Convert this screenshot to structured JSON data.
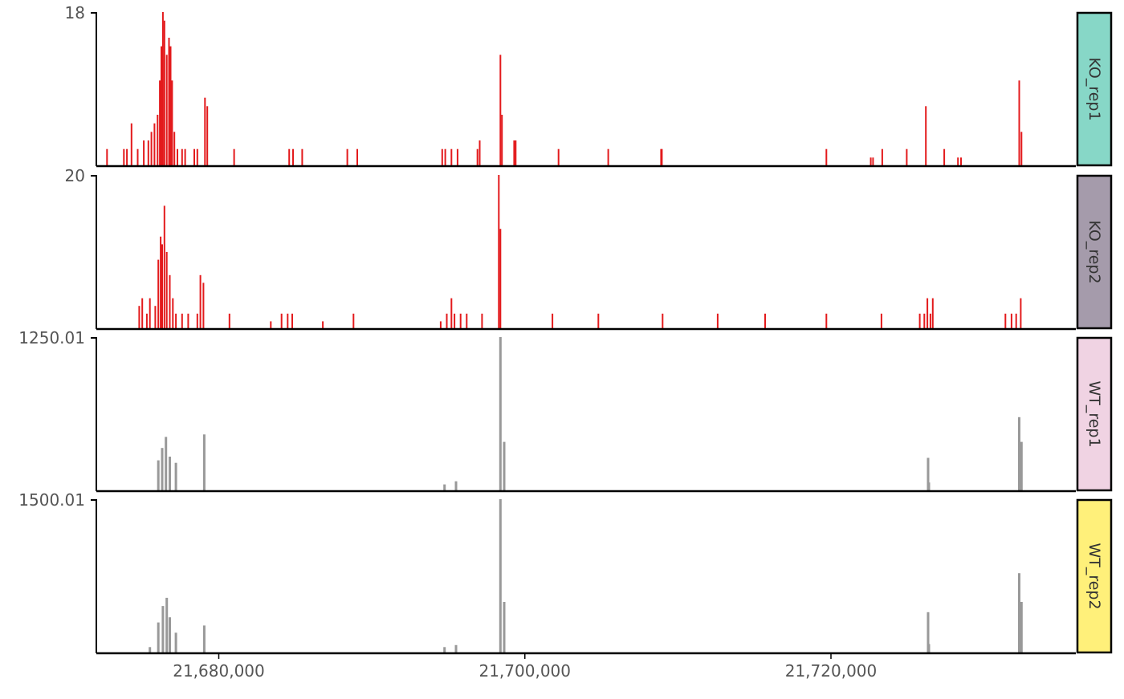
{
  "chart_data": {
    "type": "bar",
    "x_axis": {
      "range": [
        21672000,
        21736000
      ],
      "tick_values": [
        21680000,
        21700000,
        21720000
      ],
      "tick_labels": [
        "21,680,000",
        "21,700,000",
        "21,720,000"
      ]
    },
    "tracks": [
      {
        "name": "KO_rep1",
        "ymax": 18,
        "ymax_label": "18",
        "bar_color": "#e31a1c",
        "strip_color": "#87d7c7",
        "peaks": [
          [
            21672700,
            2
          ],
          [
            21673800,
            2
          ],
          [
            21674000,
            2
          ],
          [
            21674300,
            5
          ],
          [
            21674700,
            2
          ],
          [
            21675100,
            3
          ],
          [
            21675400,
            3
          ],
          [
            21675600,
            4
          ],
          [
            21675800,
            5
          ],
          [
            21676000,
            6
          ],
          [
            21676150,
            10
          ],
          [
            21676250,
            14
          ],
          [
            21676350,
            18
          ],
          [
            21676450,
            17
          ],
          [
            21676600,
            13
          ],
          [
            21676750,
            15
          ],
          [
            21676850,
            14
          ],
          [
            21676950,
            10
          ],
          [
            21677100,
            4
          ],
          [
            21677300,
            2
          ],
          [
            21677600,
            2
          ],
          [
            21677800,
            2
          ],
          [
            21678400,
            2
          ],
          [
            21678600,
            2
          ],
          [
            21679100,
            8
          ],
          [
            21679250,
            7
          ],
          [
            21681000,
            2
          ],
          [
            21684600,
            2
          ],
          [
            21684850,
            2
          ],
          [
            21685450,
            2
          ],
          [
            21688400,
            2
          ],
          [
            21689050,
            2
          ],
          [
            21694600,
            2
          ],
          [
            21694800,
            2
          ],
          [
            21695200,
            2
          ],
          [
            21695600,
            2
          ],
          [
            21696900,
            2
          ],
          [
            21697050,
            3
          ],
          [
            21698400,
            13
          ],
          [
            21698500,
            6
          ],
          [
            21699300,
            3
          ],
          [
            21699400,
            3
          ],
          [
            21702200,
            2
          ],
          [
            21705450,
            2
          ],
          [
            21708900,
            2
          ],
          [
            21708950,
            2
          ],
          [
            21719700,
            2
          ],
          [
            21722600,
            1
          ],
          [
            21722750,
            1
          ],
          [
            21723350,
            2
          ],
          [
            21724950,
            2
          ],
          [
            21726200,
            7
          ],
          [
            21727400,
            2
          ],
          [
            21728300,
            1
          ],
          [
            21728500,
            1
          ],
          [
            21732300,
            10
          ],
          [
            21732450,
            4
          ]
        ]
      },
      {
        "name": "KO_rep2",
        "ymax": 20,
        "ymax_label": "20",
        "bar_color": "#e31a1c",
        "strip_color": "#a59bab",
        "peaks": [
          [
            21674800,
            3
          ],
          [
            21675000,
            4
          ],
          [
            21675300,
            2
          ],
          [
            21675500,
            4
          ],
          [
            21675850,
            3
          ],
          [
            21676050,
            9
          ],
          [
            21676200,
            12
          ],
          [
            21676300,
            11
          ],
          [
            21676450,
            16
          ],
          [
            21676600,
            10
          ],
          [
            21676800,
            7
          ],
          [
            21677000,
            4
          ],
          [
            21677200,
            2
          ],
          [
            21677600,
            2
          ],
          [
            21678000,
            2
          ],
          [
            21678600,
            2
          ],
          [
            21678800,
            7
          ],
          [
            21679000,
            6
          ],
          [
            21680700,
            2
          ],
          [
            21683400,
            1
          ],
          [
            21684100,
            2
          ],
          [
            21684500,
            2
          ],
          [
            21684800,
            2
          ],
          [
            21686800,
            1
          ],
          [
            21688800,
            2
          ],
          [
            21694500,
            1
          ],
          [
            21694900,
            2
          ],
          [
            21695200,
            4
          ],
          [
            21695400,
            2
          ],
          [
            21695800,
            2
          ],
          [
            21696200,
            2
          ],
          [
            21697200,
            2
          ],
          [
            21698300,
            20
          ],
          [
            21698400,
            13
          ],
          [
            21701800,
            2
          ],
          [
            21704800,
            2
          ],
          [
            21709000,
            2
          ],
          [
            21712600,
            2
          ],
          [
            21715700,
            2
          ],
          [
            21719700,
            2
          ],
          [
            21723300,
            2
          ],
          [
            21725800,
            2
          ],
          [
            21726100,
            2
          ],
          [
            21726300,
            4
          ],
          [
            21726500,
            2
          ],
          [
            21726650,
            4
          ],
          [
            21731400,
            2
          ],
          [
            21731800,
            2
          ],
          [
            21732100,
            2
          ],
          [
            21732400,
            4
          ]
        ]
      },
      {
        "name": "WT_rep1",
        "ymax": 1250.01,
        "ymax_label": "1250.01",
        "bar_color": "#999999",
        "strip_color": "#f0d3e3",
        "peaks": [
          [
            21676050,
            250
          ],
          [
            21676300,
            350
          ],
          [
            21676550,
            440
          ],
          [
            21676800,
            280
          ],
          [
            21677200,
            230
          ],
          [
            21679050,
            460
          ],
          [
            21694750,
            55
          ],
          [
            21695500,
            80
          ],
          [
            21698400,
            1250
          ],
          [
            21698650,
            400
          ],
          [
            21726400,
            70
          ],
          [
            21726350,
            270
          ],
          [
            21732300,
            600
          ],
          [
            21732450,
            400
          ]
        ]
      },
      {
        "name": "WT_rep2",
        "ymax": 1500.01,
        "ymax_label": "1500.01",
        "bar_color": "#999999",
        "strip_color": "#fff07a",
        "peaks": [
          [
            21675500,
            60
          ],
          [
            21676050,
            300
          ],
          [
            21676350,
            460
          ],
          [
            21676600,
            540
          ],
          [
            21676800,
            350
          ],
          [
            21677200,
            200
          ],
          [
            21679050,
            270
          ],
          [
            21694750,
            60
          ],
          [
            21695500,
            80
          ],
          [
            21698400,
            1500
          ],
          [
            21698650,
            500
          ],
          [
            21726400,
            90
          ],
          [
            21726350,
            400
          ],
          [
            21732300,
            780
          ],
          [
            21732450,
            500
          ]
        ]
      }
    ]
  }
}
